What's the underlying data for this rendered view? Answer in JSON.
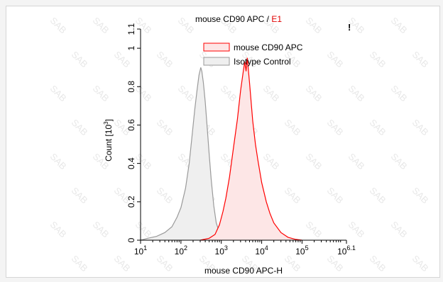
{
  "chart_data": {
    "type": "area",
    "title": "mouse CD90 APC",
    "title_gate": "E1",
    "title_sep": " / ",
    "corner_mark": "!",
    "xlabel": "mouse CD90 APC-H",
    "ylabel": "Count",
    "ylabel_unit": "[10",
    "ylabel_exp": "3",
    "ylabel_close": "]",
    "xscale": "log",
    "xlim": [
      10,
      1258925
    ],
    "ylim": [
      0,
      1.1
    ],
    "x_ticks": [
      {
        "value": 10,
        "base": "10",
        "exp": "1"
      },
      {
        "value": 100,
        "base": "10",
        "exp": "2"
      },
      {
        "value": 1000,
        "base": "10",
        "exp": "3"
      },
      {
        "value": 10000,
        "base": "10",
        "exp": "4"
      },
      {
        "value": 100000,
        "base": "10",
        "exp": "5"
      },
      {
        "value": 1258925,
        "base": "10",
        "exp": "6.1"
      }
    ],
    "y_ticks": [
      {
        "value": 0,
        "label": "0"
      },
      {
        "value": 0.2,
        "label": "0.2"
      },
      {
        "value": 0.4,
        "label": "0.4"
      },
      {
        "value": 0.6,
        "label": "0.6"
      },
      {
        "value": 0.8,
        "label": "0.8"
      },
      {
        "value": 1,
        "label": "1"
      },
      {
        "value": 1.1,
        "label": "1.1"
      }
    ],
    "legend_position": "top-right",
    "watermark": "SAB",
    "series": [
      {
        "name": "mouse CD90 APC",
        "stroke": "#ff0000",
        "fill": "#fde6e6",
        "points": [
          [
            300,
            0
          ],
          [
            500,
            0.01
          ],
          [
            700,
            0.03
          ],
          [
            900,
            0.08
          ],
          [
            1100,
            0.15
          ],
          [
            1300,
            0.22
          ],
          [
            1600,
            0.33
          ],
          [
            2000,
            0.48
          ],
          [
            2500,
            0.63
          ],
          [
            3000,
            0.78
          ],
          [
            3500,
            0.88
          ],
          [
            3800,
            0.93
          ],
          [
            4100,
            0.88
          ],
          [
            4400,
            0.95
          ],
          [
            5000,
            0.82
          ],
          [
            6000,
            0.62
          ],
          [
            7000,
            0.5
          ],
          [
            8000,
            0.42
          ],
          [
            10000,
            0.3
          ],
          [
            13000,
            0.2
          ],
          [
            16000,
            0.14
          ],
          [
            20000,
            0.09
          ],
          [
            30000,
            0.04
          ],
          [
            45000,
            0.015
          ],
          [
            70000,
            0.004
          ],
          [
            100000,
            0
          ]
        ]
      },
      {
        "name": "Isotype Control",
        "stroke": "#9a9a9a",
        "fill": "#efefef",
        "points": [
          [
            10,
            0
          ],
          [
            15,
            0.01
          ],
          [
            25,
            0.02
          ],
          [
            40,
            0.04
          ],
          [
            60,
            0.07
          ],
          [
            80,
            0.12
          ],
          [
            100,
            0.17
          ],
          [
            130,
            0.27
          ],
          [
            160,
            0.4
          ],
          [
            190,
            0.55
          ],
          [
            220,
            0.68
          ],
          [
            250,
            0.78
          ],
          [
            280,
            0.86
          ],
          [
            310,
            0.9
          ],
          [
            330,
            0.88
          ],
          [
            360,
            0.82
          ],
          [
            400,
            0.72
          ],
          [
            450,
            0.58
          ],
          [
            500,
            0.45
          ],
          [
            560,
            0.32
          ],
          [
            650,
            0.18
          ],
          [
            750,
            0.09
          ],
          [
            900,
            0.04
          ],
          [
            1100,
            0.015
          ],
          [
            1500,
            0.004
          ],
          [
            2000,
            0
          ]
        ]
      }
    ]
  }
}
